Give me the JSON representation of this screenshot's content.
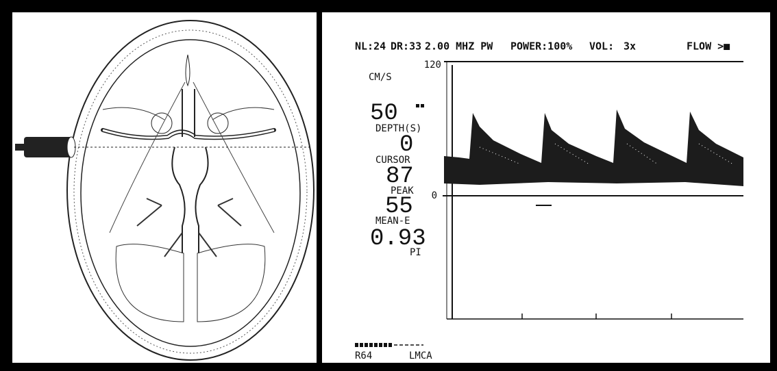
{
  "doppler": {
    "header": [
      "NL:24",
      "DR:33",
      "2.00 MHZ PW",
      "POWER:100%",
      "VOL:",
      "3x",
      "FLOW >■"
    ],
    "scale_top": "120",
    "unit": "CM/S",
    "zero": "0",
    "readouts": [
      {
        "value": "50",
        "label": "DEPTH(S)"
      },
      {
        "value": "0",
        "label": "CURSOR"
      },
      {
        "value": "87",
        "label": "PEAK"
      },
      {
        "value": "55",
        "label": "MEAN-E"
      },
      {
        "value": "0.93",
        "label": "PI"
      }
    ],
    "footer": [
      "R64",
      "LMCA"
    ]
  }
}
